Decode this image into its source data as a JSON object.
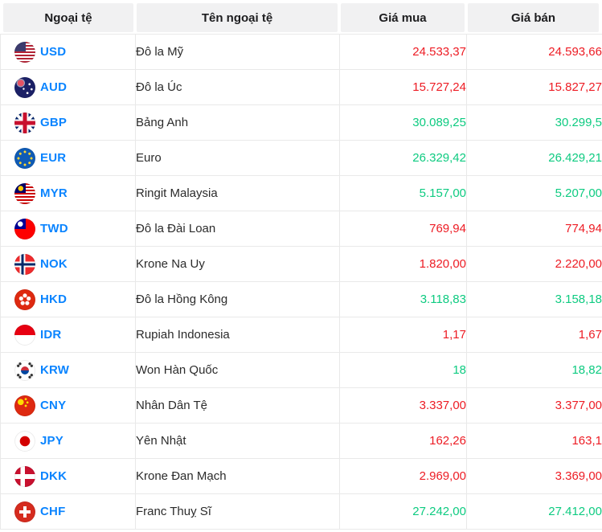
{
  "table": {
    "columns": [
      {
        "label": "Ngoại tệ"
      },
      {
        "label": "Tên ngoại tệ"
      },
      {
        "label": "Giá mua"
      },
      {
        "label": "Giá bán"
      }
    ],
    "rows": [
      {
        "code": "USD",
        "flag": "usd",
        "name": "Đô la Mỹ",
        "buy": "24.533,37",
        "sell": "24.593,66",
        "price_color": "red"
      },
      {
        "code": "AUD",
        "flag": "aud",
        "name": "Đô la Úc",
        "buy": "15.727,24",
        "sell": "15.827,27",
        "price_color": "red"
      },
      {
        "code": "GBP",
        "flag": "gbp",
        "name": "Bảng Anh",
        "buy": "30.089,25",
        "sell": "30.299,5",
        "price_color": "green"
      },
      {
        "code": "EUR",
        "flag": "eur",
        "name": "Euro",
        "buy": "26.329,42",
        "sell": "26.429,21",
        "price_color": "green"
      },
      {
        "code": "MYR",
        "flag": "myr",
        "name": "Ringit Malaysia",
        "buy": "5.157,00",
        "sell": "5.207,00",
        "price_color": "green"
      },
      {
        "code": "TWD",
        "flag": "twd",
        "name": "Đô la Đài Loan",
        "buy": "769,94",
        "sell": "774,94",
        "price_color": "red"
      },
      {
        "code": "NOK",
        "flag": "nok",
        "name": "Krone Na Uy",
        "buy": "1.820,00",
        "sell": "2.220,00",
        "price_color": "red"
      },
      {
        "code": "HKD",
        "flag": "hkd",
        "name": "Đô la Hồng Kông",
        "buy": "3.118,83",
        "sell": "3.158,18",
        "price_color": "green"
      },
      {
        "code": "IDR",
        "flag": "idr",
        "name": "Rupiah Indonesia",
        "buy": "1,17",
        "sell": "1,67",
        "price_color": "red"
      },
      {
        "code": "KRW",
        "flag": "krw",
        "name": "Won Hàn Quốc",
        "buy": "18",
        "sell": "18,82",
        "price_color": "green"
      },
      {
        "code": "CNY",
        "flag": "cny",
        "name": "Nhân Dân Tệ",
        "buy": "3.337,00",
        "sell": "3.377,00",
        "price_color": "red"
      },
      {
        "code": "JPY",
        "flag": "jpy",
        "name": "Yên Nhật",
        "buy": "162,26",
        "sell": "163,1",
        "price_color": "red"
      },
      {
        "code": "DKK",
        "flag": "dkk",
        "name": "Krone Đan Mạch",
        "buy": "2.969,00",
        "sell": "3.369,00",
        "price_color": "red"
      },
      {
        "code": "CHF",
        "flag": "chf",
        "name": "Franc Thuỵ Sĩ",
        "buy": "27.242,00",
        "sell": "27.412,00",
        "price_color": "green"
      }
    ]
  },
  "colors": {
    "code_blue": "#0a84ff",
    "price_red": "#ed1c24",
    "price_green": "#0ecb81",
    "header_bg": "#f1f1f2",
    "border": "#e9e9e9"
  }
}
